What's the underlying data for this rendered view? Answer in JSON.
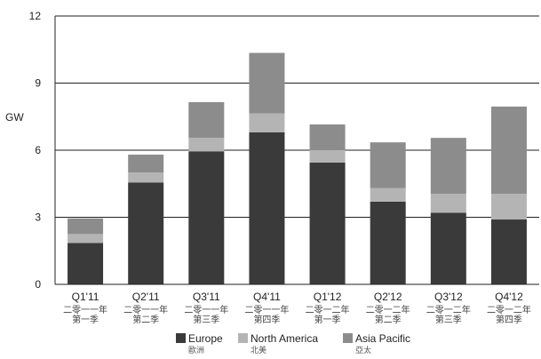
{
  "chart_data": {
    "type": "bar",
    "stacked": true,
    "title": "",
    "ylabel": "GW",
    "xlabel": "",
    "ylim": [
      0,
      12
    ],
    "yticks": [
      0,
      3,
      6,
      9,
      12
    ],
    "grid": true,
    "legend_position": "bottom",
    "categories": [
      {
        "en": "Q1'11",
        "zh": [
          "二零一一年",
          "第一季"
        ]
      },
      {
        "en": "Q2'11",
        "zh": [
          "二零一一年",
          "第二季"
        ]
      },
      {
        "en": "Q3'11",
        "zh": [
          "二零一一年",
          "第三季"
        ]
      },
      {
        "en": "Q4'11",
        "zh": [
          "二零一一年",
          "第四季"
        ]
      },
      {
        "en": "Q1'12",
        "zh": [
          "二零一二年",
          "第一季"
        ]
      },
      {
        "en": "Q2'12",
        "zh": [
          "二零一二年",
          "第二季"
        ]
      },
      {
        "en": "Q3'12",
        "zh": [
          "二零一二年",
          "第三季"
        ]
      },
      {
        "en": "Q4'12",
        "zh": [
          "二零一二年",
          "第四季"
        ]
      }
    ],
    "series": [
      {
        "name": "Europe",
        "name_zh": "歐洲",
        "color": "#3a3a3a",
        "values": [
          1.85,
          4.55,
          5.95,
          6.8,
          5.45,
          3.7,
          3.2,
          2.9
        ]
      },
      {
        "name": "North America",
        "name_zh": "北美",
        "color": "#b4b4b4",
        "values": [
          0.4,
          0.45,
          0.6,
          0.85,
          0.55,
          0.6,
          0.85,
          1.15
        ]
      },
      {
        "name": "Asia Pacific",
        "name_zh": "亞太",
        "color": "#8c8c8c",
        "values": [
          0.7,
          0.8,
          1.6,
          2.7,
          1.15,
          2.05,
          2.5,
          3.9
        ]
      }
    ]
  }
}
